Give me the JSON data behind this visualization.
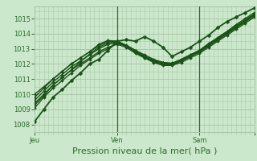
{
  "title": "",
  "xlabel": "Pression niveau de la mer( hPa )",
  "ylabel": "",
  "bg_color": "#cce8cc",
  "grid_color": "#a8c8a8",
  "line_color": "#1a5218",
  "marker_color": "#1a5218",
  "ylim": [
    1007.5,
    1015.8
  ],
  "xlim": [
    0,
    48
  ],
  "xtick_positions": [
    0,
    18,
    36,
    48
  ],
  "xtick_labels": [
    "Jeu",
    "Ven",
    "Sam",
    ""
  ],
  "ytick_positions": [
    1008,
    1009,
    1010,
    1011,
    1012,
    1013,
    1014,
    1015
  ],
  "ytick_labels": [
    "1008",
    "1009",
    "1010",
    "1011",
    "1012",
    "1013",
    "1014",
    "1015"
  ],
  "series": [
    {
      "x": [
        0,
        2,
        4,
        6,
        8,
        10,
        12,
        14,
        16,
        18,
        20,
        22,
        24,
        26,
        28,
        30,
        32,
        34,
        36,
        38,
        40,
        42,
        44,
        46,
        48
      ],
      "y": [
        1008.2,
        1009.0,
        1009.8,
        1010.3,
        1010.9,
        1011.4,
        1012.0,
        1012.3,
        1012.9,
        1013.5,
        1013.6,
        1013.5,
        1013.8,
        1013.5,
        1013.1,
        1012.5,
        1012.8,
        1013.1,
        1013.5,
        1013.9,
        1014.4,
        1014.8,
        1015.1,
        1015.4,
        1015.7
      ],
      "marker": "D",
      "lw": 1.3,
      "ms": 2.5
    },
    {
      "x": [
        0,
        2,
        4,
        6,
        8,
        10,
        12,
        14,
        16,
        18,
        20,
        22,
        24,
        26,
        28,
        30,
        32,
        34,
        36,
        38,
        40,
        42,
        44,
        46,
        48
      ],
      "y": [
        1009.1,
        1009.8,
        1010.4,
        1010.9,
        1011.4,
        1011.9,
        1012.3,
        1012.7,
        1013.0,
        1013.35,
        1013.2,
        1012.9,
        1012.6,
        1012.3,
        1012.1,
        1012.0,
        1012.2,
        1012.5,
        1012.8,
        1013.2,
        1013.6,
        1014.0,
        1014.4,
        1014.8,
        1015.2
      ],
      "marker": "D",
      "lw": 1.0,
      "ms": 2.0
    },
    {
      "x": [
        0,
        2,
        4,
        6,
        8,
        10,
        12,
        14,
        16,
        18,
        20,
        22,
        24,
        26,
        28,
        30,
        32,
        34,
        36,
        38,
        40,
        42,
        44,
        46,
        48
      ],
      "y": [
        1009.4,
        1010.0,
        1010.6,
        1011.1,
        1011.6,
        1012.0,
        1012.4,
        1012.8,
        1013.1,
        1013.3,
        1013.1,
        1012.7,
        1012.4,
        1012.1,
        1011.9,
        1011.9,
        1012.1,
        1012.4,
        1012.7,
        1013.1,
        1013.5,
        1013.9,
        1014.3,
        1014.7,
        1015.1
      ],
      "marker": "D",
      "lw": 1.0,
      "ms": 2.0
    },
    {
      "x": [
        0,
        2,
        4,
        6,
        8,
        10,
        12,
        14,
        16,
        18,
        20,
        22,
        24,
        26,
        28,
        30,
        32,
        34,
        36,
        38,
        40,
        42,
        44,
        46,
        48
      ],
      "y": [
        1009.6,
        1010.2,
        1010.8,
        1011.3,
        1011.8,
        1012.2,
        1012.6,
        1013.0,
        1013.3,
        1013.4,
        1013.2,
        1012.8,
        1012.5,
        1012.2,
        1012.0,
        1012.0,
        1012.2,
        1012.5,
        1012.8,
        1013.2,
        1013.6,
        1014.0,
        1014.4,
        1014.8,
        1015.2
      ],
      "marker": "D",
      "lw": 1.0,
      "ms": 2.0
    },
    {
      "x": [
        0,
        2,
        4,
        6,
        8,
        10,
        12,
        14,
        16,
        18,
        20,
        22,
        24,
        26,
        28,
        30,
        32,
        34,
        36,
        38,
        40,
        42,
        44,
        46,
        48
      ],
      "y": [
        1009.8,
        1010.4,
        1011.0,
        1011.5,
        1012.0,
        1012.4,
        1012.8,
        1013.2,
        1013.5,
        1013.5,
        1013.25,
        1012.9,
        1012.5,
        1012.25,
        1012.1,
        1012.05,
        1012.3,
        1012.6,
        1012.9,
        1013.3,
        1013.7,
        1014.1,
        1014.5,
        1014.9,
        1015.3
      ],
      "marker": "D",
      "lw": 1.0,
      "ms": 2.0
    },
    {
      "x": [
        0,
        2,
        4,
        6,
        8,
        10,
        12,
        14,
        16,
        18,
        20,
        22,
        24,
        26,
        28,
        30,
        32,
        34,
        36,
        38,
        40,
        42,
        44,
        46,
        48
      ],
      "y": [
        1010.0,
        1010.5,
        1011.0,
        1011.5,
        1012.0,
        1012.4,
        1012.8,
        1013.3,
        1013.55,
        1013.5,
        1013.2,
        1012.8,
        1012.4,
        1012.2,
        1012.1,
        1012.0,
        1012.3,
        1012.6,
        1012.9,
        1013.35,
        1013.75,
        1014.15,
        1014.6,
        1015.0,
        1015.4
      ],
      "marker": "D",
      "lw": 1.0,
      "ms": 2.0
    },
    {
      "x": [
        0,
        2,
        4,
        6,
        8,
        10,
        12,
        14,
        16,
        18,
        20,
        22,
        24,
        26,
        28,
        30,
        32,
        34,
        36,
        38,
        40,
        42,
        44,
        46,
        48
      ],
      "y": [
        1009.3,
        1009.9,
        1010.6,
        1011.1,
        1011.6,
        1012.15,
        1012.65,
        1013.1,
        1013.4,
        1013.45,
        1013.15,
        1012.8,
        1012.45,
        1012.15,
        1011.95,
        1011.95,
        1012.2,
        1012.55,
        1012.85,
        1013.25,
        1013.65,
        1014.05,
        1014.5,
        1014.9,
        1015.3
      ],
      "marker": "D",
      "lw": 1.0,
      "ms": 2.0
    }
  ],
  "vline_positions": [
    18,
    36
  ],
  "vline_color": "#2d6a2d",
  "tick_color": "#2d6a2d",
  "tick_fontsize": 6.0,
  "xlabel_fontsize": 8.0
}
